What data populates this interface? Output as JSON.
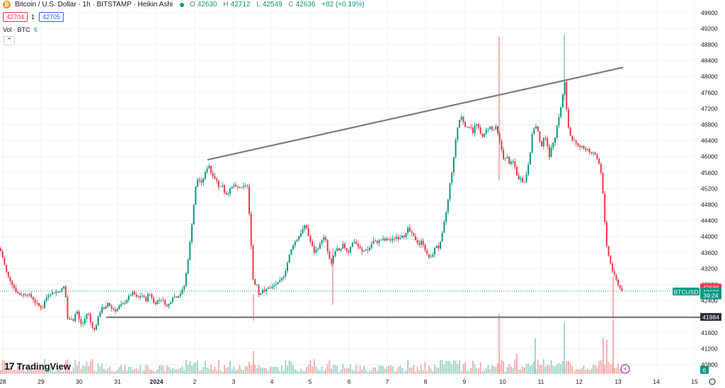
{
  "header": {
    "title": "Bitcoin / U.S. Dollar · 1h · BITSTAMP · Heikin Ashi",
    "ohlc": {
      "o_label": "O",
      "o": "42630",
      "h_label": "H",
      "h": "42712",
      "l_label": "L",
      "l": "42549",
      "c_label": "C",
      "c": "42636",
      "change": "+82 (+0.19%)"
    },
    "sell_price": "42704",
    "quantity": "1",
    "buy_price": "42705",
    "volume_label": "Vol · BTC",
    "volume_value": "6",
    "collapse_glyph": "⌃"
  },
  "brand": {
    "name": "TradingView",
    "mark": "17"
  },
  "colors": {
    "up": "#089981",
    "down": "#f23645",
    "up_vol": "#99d2c9",
    "down_vol": "#f7a9a7",
    "trendline": "#787b86",
    "text": "#131722",
    "axis_text": "#131722"
  },
  "chart_data": {
    "type": "candlestick",
    "style": "Heikin Ashi",
    "symbol": "BTCUSD",
    "interval": "1h",
    "y_axis": {
      "ticks": [
        40800,
        41200,
        41600,
        42000,
        42400,
        42800,
        43200,
        43600,
        44000,
        44400,
        44800,
        45200,
        45600,
        46000,
        46400,
        46800,
        47200,
        47600,
        48000,
        48400,
        48800,
        49200,
        49600
      ],
      "range": [
        40620,
        49850
      ]
    },
    "x_axis": {
      "labels": [
        "28",
        "29",
        "30",
        "31",
        "2024",
        "2",
        "3",
        "4",
        "5",
        "6",
        "7",
        "8",
        "9",
        "10",
        "11",
        "12",
        "13",
        "14",
        "15"
      ]
    },
    "series_path": [
      [
        0,
        43700
      ],
      [
        4,
        43450
      ],
      [
        10,
        43050
      ],
      [
        16,
        42850
      ],
      [
        22,
        42650
      ],
      [
        27,
        42550
      ],
      [
        32,
        42550
      ],
      [
        40,
        42560
      ],
      [
        46,
        42460
      ],
      [
        50,
        42350
      ],
      [
        56,
        42250
      ],
      [
        60,
        42200
      ],
      [
        64,
        42450
      ],
      [
        70,
        42580
      ],
      [
        76,
        42600
      ],
      [
        82,
        42630
      ],
      [
        86,
        42650
      ],
      [
        90,
        42760
      ],
      [
        93,
        42460
      ],
      [
        96,
        41850
      ],
      [
        100,
        41980
      ],
      [
        104,
        41900
      ],
      [
        108,
        42200
      ],
      [
        112,
        41900
      ],
      [
        116,
        41780
      ],
      [
        120,
        41950
      ],
      [
        124,
        42150
      ],
      [
        128,
        41850
      ],
      [
        133,
        41650
      ],
      [
        136,
        41800
      ],
      [
        140,
        42050
      ],
      [
        144,
        42250
      ],
      [
        148,
        42150
      ],
      [
        152,
        42350
      ],
      [
        158,
        42200
      ],
      [
        164,
        42150
      ],
      [
        168,
        42250
      ],
      [
        172,
        42300
      ],
      [
        176,
        42350
      ],
      [
        182,
        42500
      ],
      [
        188,
        42600
      ],
      [
        194,
        42450
      ],
      [
        200,
        42550
      ],
      [
        206,
        42400
      ],
      [
        210,
        42600
      ],
      [
        214,
        42500
      ],
      [
        218,
        42300
      ],
      [
        222,
        42400
      ],
      [
        228,
        42450
      ],
      [
        236,
        42250
      ],
      [
        240,
        42350
      ],
      [
        244,
        42500
      ],
      [
        250,
        42500
      ],
      [
        256,
        42600
      ],
      [
        260,
        42750
      ],
      [
        264,
        43200
      ],
      [
        268,
        43800
      ],
      [
        272,
        44500
      ],
      [
        276,
        45200
      ],
      [
        280,
        45500
      ],
      [
        284,
        45300
      ],
      [
        288,
        45500
      ],
      [
        292,
        45700
      ],
      [
        295,
        45800
      ],
      [
        298,
        45600
      ],
      [
        302,
        45500
      ],
      [
        306,
        45400
      ],
      [
        310,
        45200
      ],
      [
        314,
        45300
      ],
      [
        318,
        45050
      ],
      [
        322,
        45100
      ],
      [
        326,
        45200
      ],
      [
        330,
        45300
      ],
      [
        334,
        45200
      ],
      [
        338,
        45250
      ],
      [
        342,
        45200
      ],
      [
        346,
        45300
      ],
      [
        350,
        45250
      ],
      [
        353,
        44200
      ],
      [
        356,
        43500
      ],
      [
        358,
        42700
      ],
      [
        362,
        42900
      ],
      [
        366,
        42500
      ],
      [
        370,
        42700
      ],
      [
        374,
        42600
      ],
      [
        378,
        42750
      ],
      [
        382,
        42700
      ],
      [
        388,
        42800
      ],
      [
        394,
        42850
      ],
      [
        400,
        43000
      ],
      [
        404,
        43200
      ],
      [
        408,
        43500
      ],
      [
        414,
        43800
      ],
      [
        418,
        43900
      ],
      [
        422,
        44000
      ],
      [
        428,
        44200
      ],
      [
        432,
        44300
      ],
      [
        436,
        44000
      ],
      [
        440,
        43800
      ],
      [
        444,
        43600
      ],
      [
        448,
        43700
      ],
      [
        452,
        43800
      ],
      [
        456,
        44000
      ],
      [
        460,
        43900
      ],
      [
        464,
        43500
      ],
      [
        468,
        43300
      ],
      [
        472,
        43600
      ],
      [
        476,
        43700
      ],
      [
        480,
        43600
      ],
      [
        484,
        43800
      ],
      [
        488,
        43700
      ],
      [
        492,
        43600
      ],
      [
        496,
        43800
      ],
      [
        500,
        43900
      ],
      [
        504,
        43800
      ],
      [
        508,
        43700
      ],
      [
        512,
        43600
      ],
      [
        516,
        43700
      ],
      [
        520,
        43650
      ],
      [
        524,
        43800
      ],
      [
        528,
        43900
      ],
      [
        532,
        43850
      ],
      [
        536,
        43900
      ],
      [
        540,
        43950
      ],
      [
        544,
        43900
      ],
      [
        548,
        43950
      ],
      [
        552,
        43900
      ],
      [
        556,
        43950
      ],
      [
        560,
        44000
      ],
      [
        564,
        43950
      ],
      [
        568,
        44050
      ],
      [
        572,
        44000
      ],
      [
        576,
        44200
      ],
      [
        580,
        44100
      ],
      [
        584,
        44000
      ],
      [
        588,
        43900
      ],
      [
        592,
        43800
      ],
      [
        596,
        43900
      ],
      [
        600,
        43700
      ],
      [
        604,
        43500
      ],
      [
        608,
        43450
      ],
      [
        612,
        43600
      ],
      [
        616,
        43800
      ],
      [
        620,
        43700
      ],
      [
        624,
        44000
      ],
      [
        628,
        44400
      ],
      [
        632,
        44800
      ],
      [
        636,
        45400
      ],
      [
        640,
        45800
      ],
      [
        644,
        46500
      ],
      [
        648,
        46900
      ],
      [
        652,
        47000
      ],
      [
        656,
        46800
      ],
      [
        660,
        46700
      ],
      [
        664,
        46800
      ],
      [
        668,
        46600
      ],
      [
        672,
        46850
      ],
      [
        676,
        46700
      ],
      [
        680,
        46500
      ],
      [
        684,
        46550
      ],
      [
        688,
        46700
      ],
      [
        692,
        46750
      ],
      [
        696,
        46650
      ],
      [
        700,
        46750
      ],
      [
        704,
        46500
      ],
      [
        708,
        46200
      ],
      [
        712,
        45900
      ],
      [
        716,
        46000
      ],
      [
        720,
        45800
      ],
      [
        724,
        45900
      ],
      [
        728,
        45700
      ],
      [
        732,
        45400
      ],
      [
        736,
        45500
      ],
      [
        740,
        45300
      ],
      [
        744,
        45600
      ],
      [
        748,
        46000
      ],
      [
        752,
        46600
      ],
      [
        756,
        46800
      ],
      [
        760,
        46600
      ],
      [
        764,
        46200
      ],
      [
        768,
        46500
      ],
      [
        772,
        46400
      ],
      [
        776,
        46000
      ],
      [
        780,
        46300
      ],
      [
        784,
        46500
      ],
      [
        788,
        46900
      ],
      [
        792,
        47200
      ],
      [
        796,
        47700
      ],
      [
        798,
        47900
      ],
      [
        800,
        47200
      ],
      [
        802,
        46800
      ],
      [
        806,
        46500
      ],
      [
        810,
        46400
      ],
      [
        814,
        46300
      ],
      [
        818,
        46200
      ],
      [
        822,
        46300
      ],
      [
        826,
        46150
      ],
      [
        830,
        46200
      ],
      [
        834,
        46050
      ],
      [
        838,
        46100
      ],
      [
        842,
        46000
      ],
      [
        846,
        45850
      ],
      [
        850,
        45500
      ],
      [
        853,
        44700
      ],
      [
        856,
        43800
      ],
      [
        860,
        43500
      ],
      [
        864,
        43200
      ],
      [
        868,
        43000
      ],
      [
        872,
        42850
      ],
      [
        876,
        42700
      ],
      [
        880,
        42636
      ]
    ],
    "volume_spikes": {
      "358": 12,
      "705": 45,
      "730": 8,
      "756": 30,
      "797": 33,
      "852": 30,
      "857": 28,
      "866": 36
    },
    "trendlines": [
      {
        "from_x": 293,
        "from_y": 45920,
        "to_x": 880,
        "to_y": 48230
      },
      {
        "from_x": 150,
        "from_y": 41984,
        "to_x": 990,
        "to_y": 41984
      }
    ],
    "price_labels": [
      {
        "text": "42686",
        "value": 42686,
        "kind": "red"
      },
      {
        "text": "42636",
        "value": 42636,
        "kind": "green"
      },
      {
        "text": "39:24",
        "value": 42540,
        "kind": "green"
      },
      {
        "text": "41984",
        "value": 41984,
        "kind": "dark"
      }
    ],
    "symbol_tag": "BTCUSD",
    "volume_tag": "6"
  }
}
